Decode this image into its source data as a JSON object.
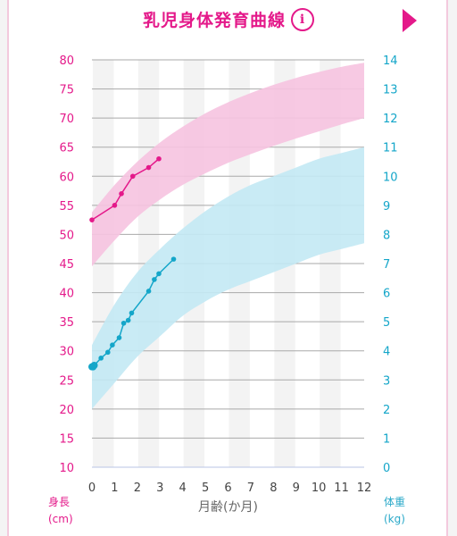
{
  "header": {
    "title": "乳児身体発育曲線",
    "info_icon": "info-icon",
    "next_icon": "triangle-right-icon"
  },
  "chart_data": {
    "type": "line",
    "xlabel": "月齢(か月)",
    "x_ticks": [
      "0",
      "1",
      "2",
      "3",
      "4",
      "5",
      "6",
      "7",
      "8",
      "9",
      "10",
      "11",
      "12"
    ],
    "xlim": [
      0,
      12
    ],
    "ylim_left": [
      10,
      80
    ],
    "ylim_right": [
      0,
      14
    ],
    "y_left_ticks": [
      "80",
      "75",
      "70",
      "65",
      "60",
      "55",
      "50",
      "45",
      "40",
      "35",
      "30",
      "25",
      "20",
      "15",
      "10"
    ],
    "y_right_ticks": [
      "14",
      "13",
      "12",
      "11",
      "10",
      "9",
      "8",
      "7",
      "6",
      "5",
      "4",
      "3",
      "2",
      "1",
      "0"
    ],
    "y_left_label": [
      "身長",
      "(cm)"
    ],
    "y_right_label": [
      "体重",
      "(kg)"
    ],
    "colors": {
      "height": "#e4198a",
      "weight": "#14a6c9",
      "height_band": "#f6c3e0",
      "weight_band": "#c3e9f4"
    },
    "height_band": {
      "x": [
        0,
        1,
        2,
        3,
        4,
        5,
        6,
        7,
        8,
        9,
        10,
        11,
        12
      ],
      "lower": [
        44.5,
        49.0,
        53.0,
        56.0,
        58.5,
        60.5,
        62.3,
        63.8,
        65.2,
        66.5,
        67.7,
        68.9,
        70.0
      ],
      "upper": [
        53.8,
        58.5,
        62.5,
        65.8,
        68.5,
        70.8,
        72.7,
        74.3,
        75.7,
        76.9,
        77.9,
        78.8,
        79.5
      ]
    },
    "weight_band": {
      "x": [
        0,
        1,
        2,
        3,
        4,
        5,
        6,
        7,
        8,
        9,
        10,
        11,
        12
      ],
      "lower": [
        2.0,
        2.9,
        3.8,
        4.5,
        5.2,
        5.7,
        6.1,
        6.4,
        6.7,
        7.0,
        7.3,
        7.5,
        7.7
      ],
      "upper": [
        4.2,
        5.6,
        6.7,
        7.5,
        8.2,
        8.8,
        9.3,
        9.7,
        10.0,
        10.3,
        10.6,
        10.8,
        11.0
      ]
    },
    "series": [
      {
        "name": "身長",
        "axis": "left",
        "x": [
          0,
          1.0,
          1.3,
          1.8,
          2.5,
          2.95
        ],
        "y": [
          52.5,
          55.0,
          57.0,
          60.0,
          61.5,
          63.0
        ]
      },
      {
        "name": "体重",
        "axis": "right",
        "x": [
          0,
          0.05,
          0.1,
          0.4,
          0.7,
          0.9,
          1.2,
          1.4,
          1.6,
          1.75,
          2.5,
          2.75,
          2.95,
          3.6
        ],
        "y": [
          3.45,
          3.45,
          3.5,
          3.75,
          3.95,
          4.2,
          4.45,
          4.95,
          5.05,
          5.3,
          6.05,
          6.45,
          6.65,
          7.15
        ]
      }
    ]
  }
}
